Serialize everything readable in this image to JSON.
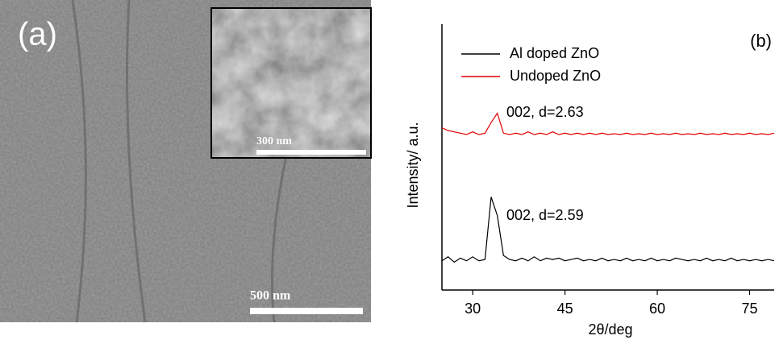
{
  "panel_a": {
    "label": "(a)",
    "scale_bar": "500 nm",
    "inset_scale_bar": "300 nm"
  },
  "chart_data": {
    "type": "line",
    "panel_label": "(b)",
    "x_label": "2θ/deg",
    "y_label": "Intensity/ a.u.",
    "x": [
      25,
      26,
      27,
      28,
      29,
      30,
      31,
      32,
      33,
      34,
      35,
      36,
      37,
      38,
      39,
      40,
      41,
      42,
      43,
      44,
      45,
      46,
      47,
      48,
      49,
      50,
      51,
      52,
      53,
      54,
      55,
      56,
      57,
      58,
      59,
      60,
      61,
      62,
      63,
      64,
      65,
      66,
      67,
      68,
      69,
      70,
      71,
      72,
      73,
      74,
      75,
      76,
      77,
      78,
      79
    ],
    "series": [
      {
        "name": "Al doped ZnO",
        "color": "#000000",
        "values": [
          11,
          12.5,
          10.5,
          12,
          11,
          12.5,
          11,
          11.5,
          35,
          28,
          13,
          11.5,
          11,
          12,
          11,
          12.5,
          11,
          12,
          11.5,
          12,
          11,
          11.5,
          12,
          11,
          11.5,
          11,
          12,
          11,
          11.5,
          11,
          12,
          11,
          11.5,
          11,
          12,
          11,
          11.5,
          11,
          12,
          11.5,
          11,
          11.5,
          11,
          12,
          11,
          11.5,
          11,
          12,
          11,
          11.5,
          11,
          11.5,
          11,
          11.5,
          11
        ]
      },
      {
        "name": "Undoped ZnO",
        "color": "#e00000",
        "values": [
          61,
          60,
          59.5,
          59,
          58.5,
          59.5,
          58.5,
          59,
          63,
          66.5,
          59,
          58.5,
          59,
          58.5,
          59.5,
          58.5,
          59,
          58.5,
          59.5,
          58.5,
          59,
          58.5,
          59,
          58.5,
          59,
          58.5,
          59,
          58.5,
          58.8,
          58.5,
          59,
          58.5,
          58.8,
          58.5,
          59,
          58.5,
          58.8,
          58.5,
          59,
          58.5,
          58.8,
          58.5,
          59,
          58.5,
          58.8,
          58.5,
          59,
          58.5,
          58.8,
          58.5,
          59,
          58.5,
          58.8,
          58.5,
          59
        ]
      }
    ],
    "annotations": [
      "002, d=2.63",
      "002, d=2.59"
    ],
    "xlim": [
      25,
      79
    ],
    "ylim": [
      0,
      100
    ],
    "xticks": [
      30,
      45,
      60,
      75
    ],
    "legend": "upper left"
  }
}
